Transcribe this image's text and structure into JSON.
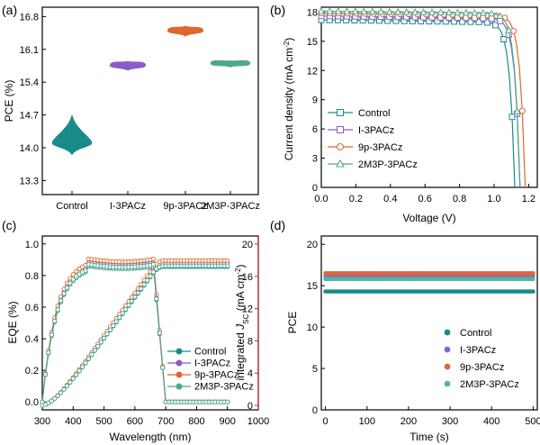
{
  "colors": {
    "control": "#1a8a8a",
    "i3pacz": "#8b5cc9",
    "p9": "#e0662f",
    "m2m3p": "#4ea88a",
    "jsc_axis": "#c0282d",
    "series_d": {
      "control": "#178a8a",
      "i3pacz": "#8a67c8",
      "p9": "#e5652e",
      "m2m3p": "#52b898"
    }
  },
  "chart_data": [
    {
      "panel_label": "(a)",
      "type": "violin",
      "ylabel": "PCE (%)",
      "categories": [
        "Control",
        "I-3PACz",
        "9p-3PACz",
        "2M3P-3PACz"
      ],
      "yticks": [
        "13.3",
        "14.0",
        "14.7",
        "15.4",
        "16.1",
        "16.8"
      ],
      "ylim": [
        13.0,
        17.0
      ],
      "series": [
        {
          "center": 14.1,
          "low": 13.85,
          "high": 14.7,
          "width": 0.5
        },
        {
          "center": 15.76,
          "low": 15.65,
          "high": 15.85,
          "width": 0.45
        },
        {
          "center": 16.5,
          "low": 16.38,
          "high": 16.6,
          "width": 0.45
        },
        {
          "center": 15.8,
          "low": 15.72,
          "high": 15.86,
          "width": 0.5
        }
      ]
    },
    {
      "panel_label": "(b)",
      "type": "line",
      "xlabel": "Voltage (V)",
      "ylabel": "Current density (mA cm",
      "ylabel_sup": "-2",
      "ylabel_end": ")",
      "xticks": [
        "0.0",
        "0.2",
        "0.4",
        "0.6",
        "0.8",
        "1.0",
        "1.2"
      ],
      "yticks": [
        "0",
        "3",
        "6",
        "9",
        "12",
        "15",
        "18"
      ],
      "xlim": [
        0,
        1.25
      ],
      "ylim": [
        0,
        18.5
      ],
      "legend": [
        "Control",
        "I-3PACz",
        "9p-3PACz",
        "2M3P-3PACz"
      ],
      "series": [
        {
          "name": "Control",
          "jsc": 17.2,
          "voc": 1.12,
          "marker": "square"
        },
        {
          "name": "I-3PACz",
          "jsc": 17.6,
          "voc": 1.15,
          "marker": "square"
        },
        {
          "name": "9p-3PACz",
          "jsc": 17.9,
          "voc": 1.18,
          "marker": "circle"
        },
        {
          "name": "2M3P-3PACz",
          "jsc": 18.1,
          "voc": 1.15,
          "marker": "triangle"
        }
      ]
    },
    {
      "panel_label": "(c)",
      "type": "line",
      "xlabel": "Wavelength (nm)",
      "ylabel": "EQE (%)",
      "ylabel_right_pre": "integrated ",
      "ylabel_right_J": "J",
      "ylabel_right_sub": "SC",
      "ylabel_right_post": " (mA cm",
      "ylabel_right_sup": "-2",
      "ylabel_right_end": ")",
      "xticks": [
        "300",
        "400",
        "500",
        "600",
        "700",
        "800",
        "900",
        "1000"
      ],
      "yticks": [
        "0.0",
        "0.2",
        "0.4",
        "0.6",
        "0.8",
        "1.0"
      ],
      "yticks_right": [
        "0",
        "4",
        "8",
        "12",
        "16",
        "20"
      ],
      "xlim": [
        300,
        1000
      ],
      "ylim": [
        -0.05,
        1.05
      ],
      "ylim_right": [
        0,
        21
      ],
      "legend": [
        "Control",
        "I-3PACz",
        "9p-3PACz",
        "2M3P-3PACz"
      ],
      "series": [
        {
          "name": "Control",
          "eqe_plateau": 0.86,
          "jsc": 17.2
        },
        {
          "name": "I-3PACz",
          "eqe_plateau": 0.88,
          "jsc": 17.6
        },
        {
          "name": "9p-3PACz",
          "eqe_plateau": 0.905,
          "jsc": 17.95
        },
        {
          "name": "2M3P-3PACz",
          "eqe_plateau": 0.87,
          "jsc": 17.3
        }
      ]
    },
    {
      "panel_label": "(d)",
      "type": "scatter",
      "xlabel": "Time (s)",
      "ylabel": "PCE",
      "xticks": [
        "0",
        "100",
        "200",
        "300",
        "400",
        "500"
      ],
      "yticks": [
        "0",
        "5",
        "10",
        "15",
        "20"
      ],
      "xlim": [
        -10,
        510
      ],
      "ylim": [
        0,
        21
      ],
      "legend": [
        "Control",
        "I-3PACz",
        "9p-3PACz",
        "2M3P-3PACz"
      ],
      "series": [
        {
          "name": "Control",
          "value": 14.3
        },
        {
          "name": "I-3PACz",
          "value": 16.2
        },
        {
          "name": "9p-3PACz",
          "value": 16.5
        },
        {
          "name": "2M3P-3PACz",
          "value": 15.8
        }
      ]
    }
  ]
}
